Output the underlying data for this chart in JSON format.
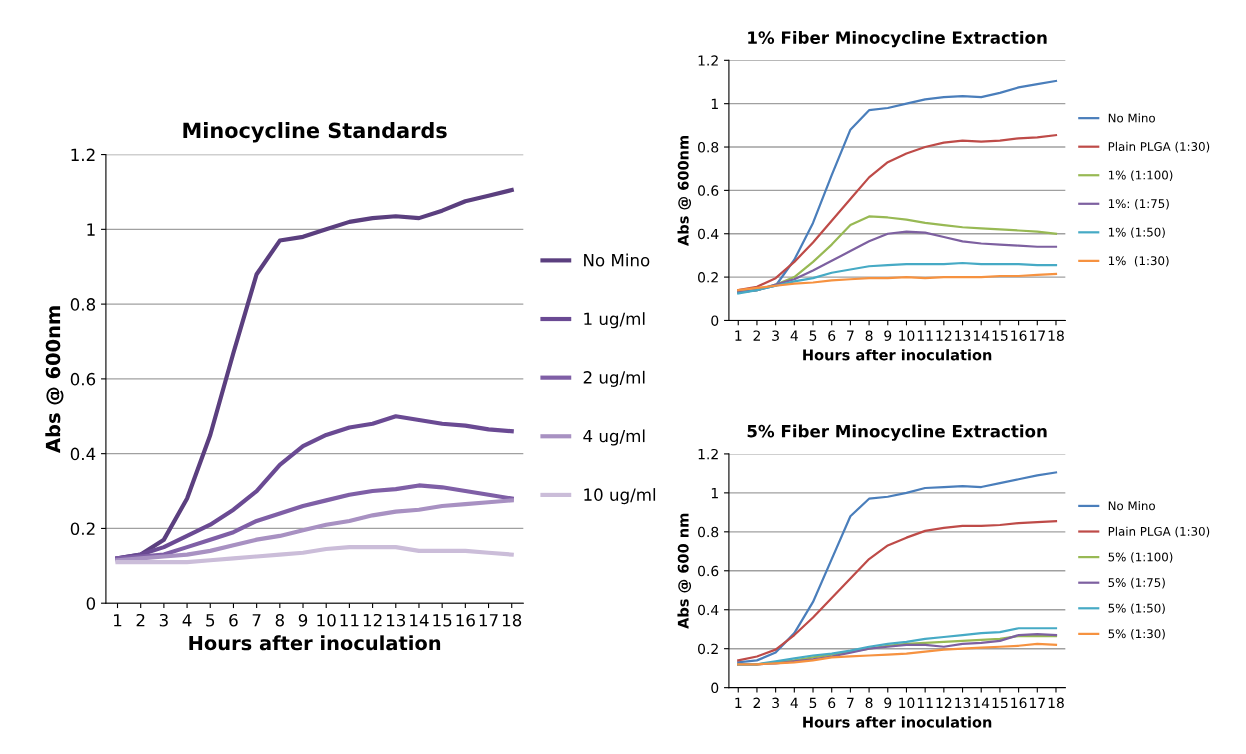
{
  "chart_data": [
    {
      "type": "line",
      "title": "Minocycline Standards",
      "xlabel": "Hours after inoculation",
      "ylabel": "Abs @ 600nm",
      "categories": [
        "1",
        "2",
        "3",
        "4",
        "5",
        "6",
        "7",
        "8",
        "9",
        "10",
        "11",
        "12",
        "13",
        "14",
        "15",
        "16",
        "17",
        "18"
      ],
      "ylim": [
        0,
        1.2
      ],
      "yticks": [
        0,
        0.2,
        0.4,
        0.6,
        0.8,
        1,
        1.2
      ],
      "grid": "y",
      "legend": "right",
      "line_style": "solid",
      "series": [
        {
          "name": "No Mino",
          "color": "#5b3f7f",
          "values": [
            0.12,
            0.13,
            0.17,
            0.28,
            0.45,
            0.67,
            0.88,
            0.97,
            0.98,
            1.0,
            1.02,
            1.03,
            1.035,
            1.03,
            1.05,
            1.075,
            1.09,
            1.105
          ]
        },
        {
          "name": "1 ug/ml",
          "color": "#6a4a93",
          "values": [
            0.12,
            0.13,
            0.15,
            0.18,
            0.21,
            0.25,
            0.3,
            0.37,
            0.42,
            0.45,
            0.47,
            0.48,
            0.5,
            0.49,
            0.48,
            0.475,
            0.465,
            0.46
          ]
        },
        {
          "name": "2 ug/ml",
          "color": "#7f5fa6",
          "values": [
            0.12,
            0.125,
            0.13,
            0.15,
            0.17,
            0.19,
            0.22,
            0.24,
            0.26,
            0.275,
            0.29,
            0.3,
            0.305,
            0.315,
            0.31,
            0.3,
            0.29,
            0.28
          ]
        },
        {
          "name": "4 ug/ml",
          "color": "#a891c2",
          "values": [
            0.115,
            0.12,
            0.125,
            0.13,
            0.14,
            0.155,
            0.17,
            0.18,
            0.195,
            0.21,
            0.22,
            0.235,
            0.245,
            0.25,
            0.26,
            0.265,
            0.27,
            0.275
          ]
        },
        {
          "name": "10 ug/ml",
          "color": "#cbbdd9",
          "values": [
            0.11,
            0.11,
            0.11,
            0.11,
            0.115,
            0.12,
            0.125,
            0.13,
            0.135,
            0.145,
            0.15,
            0.15,
            0.15,
            0.14,
            0.14,
            0.14,
            0.135,
            0.13
          ]
        }
      ]
    },
    {
      "type": "line",
      "title": "1% Fiber Minocycline Extraction",
      "xlabel": "Hours after inoculation",
      "ylabel": "Abs @ 600nm",
      "categories": [
        "1",
        "2",
        "3",
        "4",
        "5",
        "6",
        "7",
        "8",
        "9",
        "10",
        "11",
        "12",
        "13",
        "14",
        "15",
        "16",
        "17",
        "18"
      ],
      "ylim": [
        0,
        1.2
      ],
      "yticks": [
        0,
        0.2,
        0.4,
        0.6,
        0.8,
        1,
        1.2
      ],
      "grid": "y",
      "legend": "right",
      "line_style": "solid",
      "series": [
        {
          "name": "No Mino",
          "color": "#4a7ebb",
          "values": [
            0.13,
            0.14,
            0.16,
            0.28,
            0.45,
            0.67,
            0.88,
            0.97,
            0.98,
            1.0,
            1.02,
            1.03,
            1.035,
            1.03,
            1.05,
            1.075,
            1.09,
            1.105
          ]
        },
        {
          "name": "Plain PLGA (1:30)",
          "color": "#be4b48",
          "values": [
            0.14,
            0.155,
            0.195,
            0.27,
            0.36,
            0.46,
            0.56,
            0.66,
            0.73,
            0.77,
            0.8,
            0.82,
            0.83,
            0.825,
            0.83,
            0.84,
            0.845,
            0.855
          ]
        },
        {
          "name": "1% (1:100)",
          "color": "#98b954",
          "values": [
            0.13,
            0.14,
            0.165,
            0.2,
            0.27,
            0.35,
            0.44,
            0.48,
            0.475,
            0.465,
            0.45,
            0.44,
            0.43,
            0.425,
            0.42,
            0.415,
            0.41,
            0.4
          ]
        },
        {
          "name": "1%: (1:75)",
          "color": "#7d60a0",
          "values": [
            0.13,
            0.14,
            0.165,
            0.19,
            0.23,
            0.275,
            0.32,
            0.365,
            0.4,
            0.41,
            0.405,
            0.385,
            0.365,
            0.355,
            0.35,
            0.345,
            0.34,
            0.34
          ]
        },
        {
          "name": "1% (1:50)",
          "color": "#46aac5",
          "values": [
            0.125,
            0.14,
            0.16,
            0.18,
            0.195,
            0.22,
            0.235,
            0.25,
            0.255,
            0.26,
            0.26,
            0.26,
            0.265,
            0.26,
            0.26,
            0.26,
            0.255,
            0.255
          ]
        },
        {
          "name": "1%  (1:30)",
          "color": "#f69240",
          "values": [
            0.14,
            0.15,
            0.16,
            0.17,
            0.175,
            0.185,
            0.19,
            0.195,
            0.195,
            0.2,
            0.195,
            0.2,
            0.2,
            0.2,
            0.205,
            0.205,
            0.21,
            0.215
          ]
        }
      ]
    },
    {
      "type": "line",
      "title": "5% Fiber Minocycline Extraction",
      "xlabel": "Hours after inoculation",
      "ylabel": "Abs @ 600 nm",
      "categories": [
        "1",
        "2",
        "3",
        "4",
        "5",
        "6",
        "7",
        "8",
        "9",
        "10",
        "11",
        "12",
        "13",
        "14",
        "15",
        "16",
        "17",
        "18"
      ],
      "ylim": [
        0,
        1.2
      ],
      "yticks": [
        0,
        0.2,
        0.4,
        0.6,
        0.8,
        1,
        1.2
      ],
      "grid": "y",
      "legend": "right",
      "line_style": "solid",
      "series": [
        {
          "name": "No Mino",
          "color": "#4a7ebb",
          "values": [
            0.13,
            0.14,
            0.18,
            0.28,
            0.44,
            0.66,
            0.88,
            0.97,
            0.98,
            1.0,
            1.025,
            1.03,
            1.035,
            1.03,
            1.05,
            1.07,
            1.09,
            1.105
          ]
        },
        {
          "name": "Plain PLGA (1:30)",
          "color": "#be4b48",
          "values": [
            0.14,
            0.16,
            0.195,
            0.27,
            0.36,
            0.46,
            0.56,
            0.66,
            0.73,
            0.77,
            0.805,
            0.82,
            0.83,
            0.83,
            0.835,
            0.845,
            0.85,
            0.855
          ]
        },
        {
          "name": "5% (1:100)",
          "color": "#98b954",
          "values": [
            0.12,
            0.12,
            0.13,
            0.14,
            0.155,
            0.17,
            0.185,
            0.2,
            0.215,
            0.225,
            0.23,
            0.235,
            0.24,
            0.245,
            0.25,
            0.265,
            0.265,
            0.265
          ]
        },
        {
          "name": "5% (1:75)",
          "color": "#7d60a0",
          "values": [
            0.12,
            0.12,
            0.125,
            0.135,
            0.145,
            0.16,
            0.18,
            0.2,
            0.21,
            0.22,
            0.22,
            0.21,
            0.225,
            0.23,
            0.24,
            0.27,
            0.275,
            0.27
          ]
        },
        {
          "name": "5% (1:50)",
          "color": "#46aac5",
          "values": [
            0.12,
            0.12,
            0.135,
            0.15,
            0.165,
            0.175,
            0.19,
            0.21,
            0.225,
            0.235,
            0.25,
            0.26,
            0.27,
            0.28,
            0.285,
            0.305,
            0.305,
            0.305
          ]
        },
        {
          "name": "5% (1:30)",
          "color": "#f69240",
          "values": [
            0.12,
            0.12,
            0.125,
            0.13,
            0.14,
            0.155,
            0.16,
            0.165,
            0.17,
            0.175,
            0.185,
            0.195,
            0.2,
            0.205,
            0.21,
            0.215,
            0.225,
            0.22
          ]
        }
      ]
    }
  ]
}
